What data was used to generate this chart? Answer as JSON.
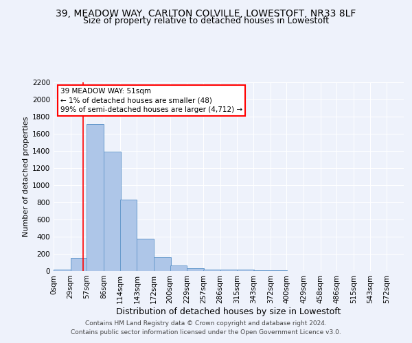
{
  "title1": "39, MEADOW WAY, CARLTON COLVILLE, LOWESTOFT, NR33 8LF",
  "title2": "Size of property relative to detached houses in Lowestoft",
  "xlabel": "Distribution of detached houses by size in Lowestoft",
  "ylabel": "Number of detached properties",
  "bin_labels": [
    "0sqm",
    "29sqm",
    "57sqm",
    "86sqm",
    "114sqm",
    "143sqm",
    "172sqm",
    "200sqm",
    "229sqm",
    "257sqm",
    "286sqm",
    "315sqm",
    "343sqm",
    "372sqm",
    "400sqm",
    "429sqm",
    "458sqm",
    "486sqm",
    "515sqm",
    "543sqm",
    "572sqm"
  ],
  "bin_edges": [
    0,
    29,
    57,
    86,
    114,
    143,
    172,
    200,
    229,
    257,
    286,
    315,
    343,
    372,
    400,
    429,
    458,
    486,
    515,
    543,
    572
  ],
  "bar_heights": [
    15,
    150,
    1710,
    1390,
    830,
    380,
    160,
    65,
    30,
    20,
    20,
    15,
    10,
    10,
    0,
    0,
    0,
    0,
    0,
    0
  ],
  "bar_color": "#aec6e8",
  "bar_edge_color": "#6699cc",
  "red_line_x": 51,
  "annotation_line1": "39 MEADOW WAY: 51sqm",
  "annotation_line2": "← 1% of detached houses are smaller (48)",
  "annotation_line3": "99% of semi-detached houses are larger (4,712) →",
  "ylim": [
    0,
    2200
  ],
  "yticks": [
    0,
    200,
    400,
    600,
    800,
    1000,
    1200,
    1400,
    1600,
    1800,
    2000,
    2200
  ],
  "footer_line1": "Contains HM Land Registry data © Crown copyright and database right 2024.",
  "footer_line2": "Contains public sector information licensed under the Open Government Licence v3.0.",
  "background_color": "#eef2fb",
  "grid_color": "#ffffff",
  "title1_fontsize": 10,
  "title2_fontsize": 9,
  "xlabel_fontsize": 9,
  "ylabel_fontsize": 8,
  "tick_fontsize": 7.5,
  "footer_fontsize": 6.5
}
